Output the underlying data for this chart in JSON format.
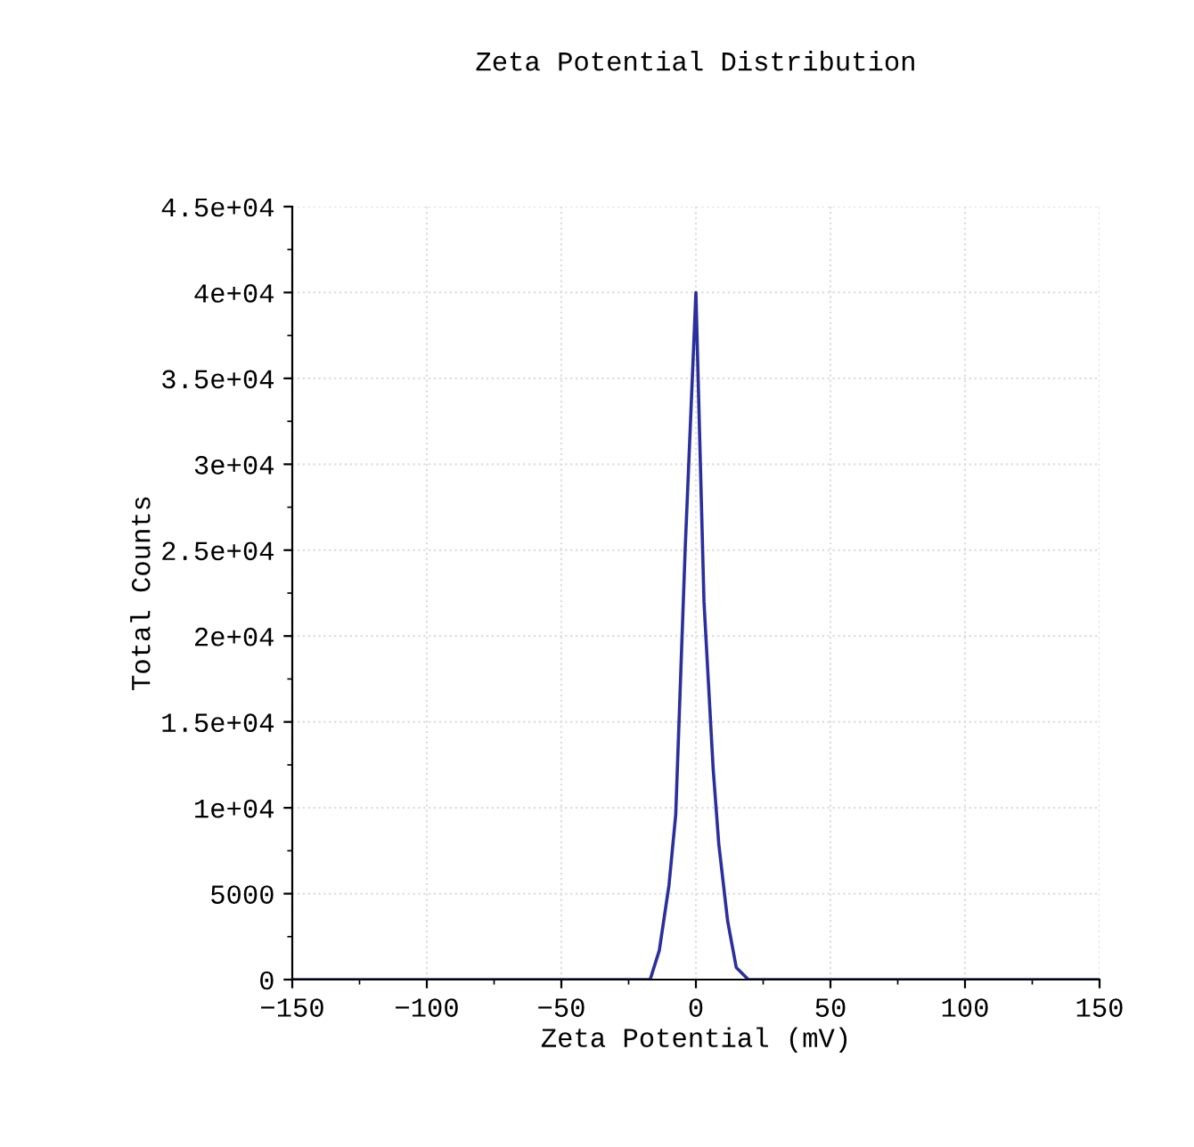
{
  "chart_data": {
    "type": "line",
    "title": "Zeta Potential Distribution",
    "xlabel": "Zeta Potential (mV)",
    "ylabel": "Total Counts",
    "series": [
      {
        "color": "#2b2f9e",
        "x": [
          -150,
          -17,
          -13.6,
          -10,
          -7.5,
          -4,
          0,
          3,
          6.4,
          8.5,
          11.8,
          15,
          19.5,
          150
        ],
        "values": [
          0,
          0,
          1700,
          5500,
          9600,
          25000,
          40000,
          22000,
          12300,
          7900,
          3400,
          700,
          0,
          0
        ]
      }
    ],
    "xlim": [
      -150,
      150
    ],
    "xticks": [
      {
        "value": -150,
        "label": "−150"
      },
      {
        "value": -100,
        "label": "−100"
      },
      {
        "value": -50,
        "label": "−50"
      },
      0,
      50,
      100,
      150
    ],
    "ylim": [
      0,
      45000
    ],
    "yticks": [
      {
        "value": 0,
        "label": "0"
      },
      {
        "value": 5000,
        "label": "5000"
      },
      {
        "value": 10000,
        "label": "1e+04"
      },
      {
        "value": 15000,
        "label": "1.5e+04"
      },
      {
        "value": 20000,
        "label": "2e+04"
      },
      {
        "value": 25000,
        "label": "2.5e+04"
      },
      {
        "value": 30000,
        "label": "3e+04"
      },
      {
        "value": 35000,
        "label": "3.5e+04"
      },
      {
        "value": 40000,
        "label": "4e+04"
      },
      {
        "value": 45000,
        "label": "4.5e+04"
      }
    ],
    "grid": true,
    "marker": "none",
    "line_style": "solid"
  }
}
